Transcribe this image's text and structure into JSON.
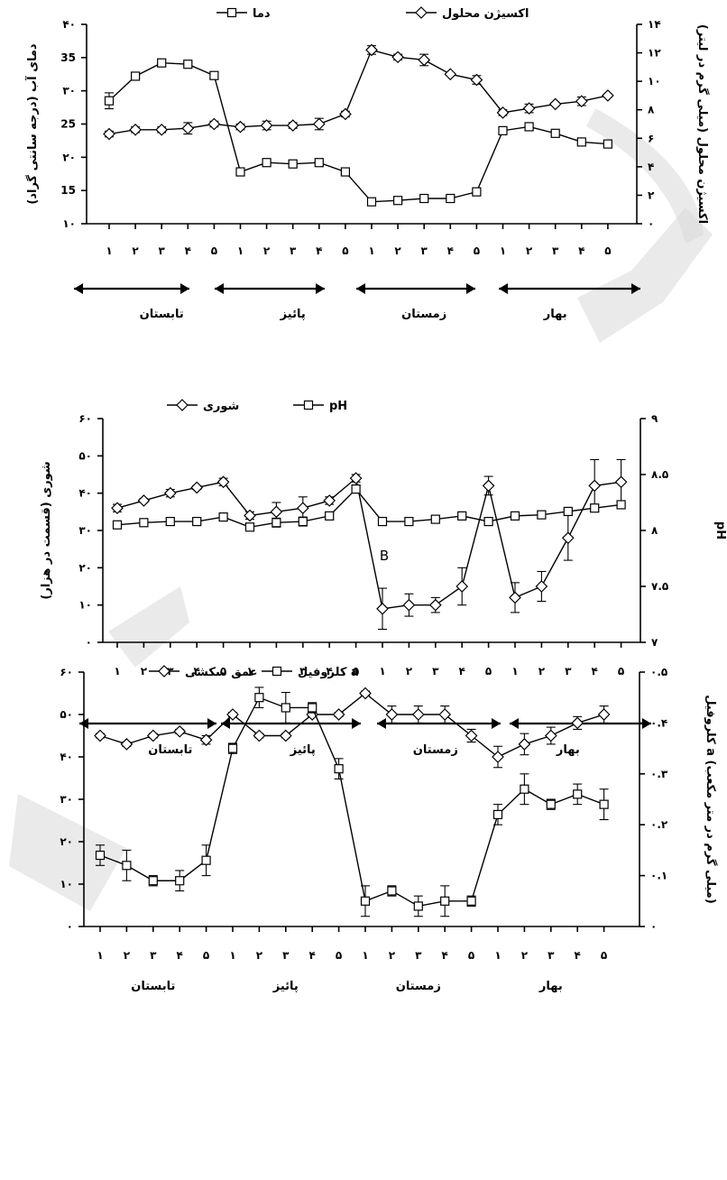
{
  "chart_data": [
    {
      "type": "line",
      "categories": [
        "۱",
        "۲",
        "۳",
        "۴",
        "۵",
        "۱",
        "۲",
        "۳",
        "۴",
        "۵",
        "۱",
        "۲",
        "۳",
        "۴",
        "۵",
        "۱",
        "۲",
        "۳",
        "۴",
        "۵"
      ],
      "seasons": [
        "تابستان",
        "پائیز",
        "زمستان",
        "بهار"
      ],
      "ylabel": "دمای آب (درجه سانتی گراد)",
      "y2label": "اکسیژن محلول (میلی گرم در لیتر)",
      "ylim": [
        10,
        40
      ],
      "y2lim": [
        0,
        14
      ],
      "yticks": [
        "۱۰",
        "15",
        "۲۰",
        "25",
        "۳۰",
        "35",
        "۴۰"
      ],
      "y2ticks": [
        "۰",
        "۲",
        "۴",
        "۶",
        "۸",
        "۱۰",
        "۱۲",
        "۱۴"
      ],
      "legend": "top",
      "series": [
        {
          "name": "دما",
          "marker": "square",
          "axis": "left",
          "values": [
            28.5,
            32.2,
            34.2,
            34.0,
            32.3,
            17.8,
            19.2,
            19.0,
            19.2,
            17.8,
            13.3,
            13.5,
            13.8,
            13.8,
            14.8,
            24.0,
            24.6,
            23.6,
            22.3,
            22.0
          ],
          "errors": [
            1.2,
            0.3,
            0.5,
            0.2,
            0.4,
            0.4,
            0.3,
            0.4,
            0.2,
            0.3,
            0.2,
            0.3,
            0.5,
            0.3,
            0.3,
            0.2,
            0.3,
            0.3,
            0.3,
            0.2
          ]
        },
        {
          "name": "اکسیژن محلول",
          "marker": "diamond",
          "axis": "right",
          "values": [
            6.3,
            6.6,
            6.6,
            6.7,
            7.0,
            6.8,
            6.9,
            6.9,
            7.0,
            7.7,
            12.2,
            11.7,
            11.5,
            10.5,
            10.1,
            7.8,
            8.1,
            8.4,
            8.6,
            9.0
          ],
          "errors": [
            0.2,
            0.2,
            0.2,
            0.4,
            0.2,
            0.2,
            0.3,
            0.2,
            0.4,
            0.2,
            0.3,
            0.2,
            0.4,
            0.1,
            0.3,
            0.2,
            0.3,
            0.1,
            0.3,
            0.1
          ]
        }
      ]
    },
    {
      "type": "line",
      "categories": [
        "۱",
        "۲",
        "۳",
        "۴",
        "۵",
        "۱",
        "۲",
        "۳",
        "۴",
        "۵",
        "۱",
        "۲",
        "۳",
        "۴",
        "۵",
        "۱",
        "۲",
        "۳",
        "۴",
        "۵"
      ],
      "seasons": [
        "تابستان",
        "پائیز",
        "زمستان",
        "بهار"
      ],
      "ylabel": "شوری (قسمت در هزار)",
      "y2label": "pH",
      "ylim": [
        0,
        60
      ],
      "y2lim": [
        7,
        9
      ],
      "yticks": [
        "۰",
        "۱۰",
        "۲۰",
        "۳۰",
        "۴۰",
        "۵۰",
        "۶۰"
      ],
      "y2ticks": [
        "۷",
        "۷.۵",
        "۸",
        "۸.۵",
        "۹"
      ],
      "legend": "top",
      "annotation": "B",
      "series": [
        {
          "name": "شوری",
          "marker": "diamond",
          "axis": "left",
          "values": [
            36,
            38,
            40,
            41.5,
            43,
            34,
            35,
            36,
            38,
            44,
            9,
            10,
            10,
            15,
            42,
            12,
            15,
            28,
            42,
            43
          ],
          "errors": [
            1,
            0.5,
            1,
            0.5,
            1,
            1,
            2.5,
            3,
            1,
            1,
            5.5,
            3,
            2,
            5,
            2.5,
            4,
            4,
            6,
            7,
            6
          ]
        },
        {
          "name": "pH",
          "marker": "square",
          "axis": "right",
          "values": [
            8.05,
            8.07,
            8.08,
            8.08,
            8.12,
            8.03,
            8.07,
            8.08,
            8.13,
            8.37,
            8.08,
            8.08,
            8.1,
            8.13,
            8.08,
            8.13,
            8.14,
            8.17,
            8.2,
            8.23
          ],
          "errors": [
            0.02,
            0.03,
            0.03,
            0.02,
            0.03,
            0.02,
            0.04,
            0.04,
            0.03,
            0.03,
            0.03,
            0.03,
            0.03,
            0.02,
            0.01,
            0.03,
            0.03,
            0.02,
            0.03,
            0.02
          ]
        }
      ]
    },
    {
      "type": "line",
      "categories": [
        "۱",
        "۲",
        "۳",
        "۴",
        "۵",
        "۱",
        "۲",
        "۳",
        "۴",
        "۵",
        "۱",
        "۲",
        "۳",
        "۴",
        "۵",
        "۱",
        "۲",
        "۳",
        "۴",
        "۵"
      ],
      "seasons": [
        "تابستان",
        "پائیز",
        "زمستان",
        "بهار"
      ],
      "ylabel": "",
      "y2label": "کلروفیل a (میلی گرم در متر مکعب)",
      "ylim": [
        0,
        60
      ],
      "y2lim": [
        0,
        0.5
      ],
      "yticks": [
        "۰",
        "۱۰",
        "۲۰",
        "۳۰",
        "۴۰",
        "۵۰",
        "۶۰"
      ],
      "y2ticks": [
        "۰",
        "۰.۱",
        "۰.۲",
        "۰.۳",
        "۰.۴",
        "۰.۵"
      ],
      "legend": "top",
      "series": [
        {
          "name": "عمق سکشی",
          "marker": "diamond",
          "axis": "left",
          "values": [
            45,
            43,
            45,
            46,
            44,
            50,
            45,
            45,
            50,
            50,
            55,
            50,
            50,
            50,
            45,
            40,
            43,
            45,
            48,
            50
          ],
          "errors": [
            0.5,
            0.5,
            0.5,
            0.5,
            1,
            0.5,
            0.5,
            0.5,
            0.5,
            0.5,
            0.5,
            2,
            2,
            2,
            1.5,
            2.5,
            2.5,
            2,
            1.5,
            2
          ]
        },
        {
          "name": "کلروفیل a",
          "marker": "square",
          "axis": "right",
          "values": [
            0.14,
            0.12,
            0.09,
            0.09,
            0.13,
            0.35,
            0.45,
            0.43,
            0.43,
            0.31,
            0.05,
            0.07,
            0.04,
            0.05,
            0.05,
            0.22,
            0.27,
            0.24,
            0.26,
            0.24
          ],
          "errors": [
            0.02,
            0.03,
            0.01,
            0.02,
            0.03,
            0.01,
            0.02,
            0.03,
            0.01,
            0.02,
            0.03,
            0.01,
            0.02,
            0.03,
            0.01,
            0.02,
            0.03,
            0.01,
            0.02,
            0.03
          ]
        }
      ]
    }
  ]
}
